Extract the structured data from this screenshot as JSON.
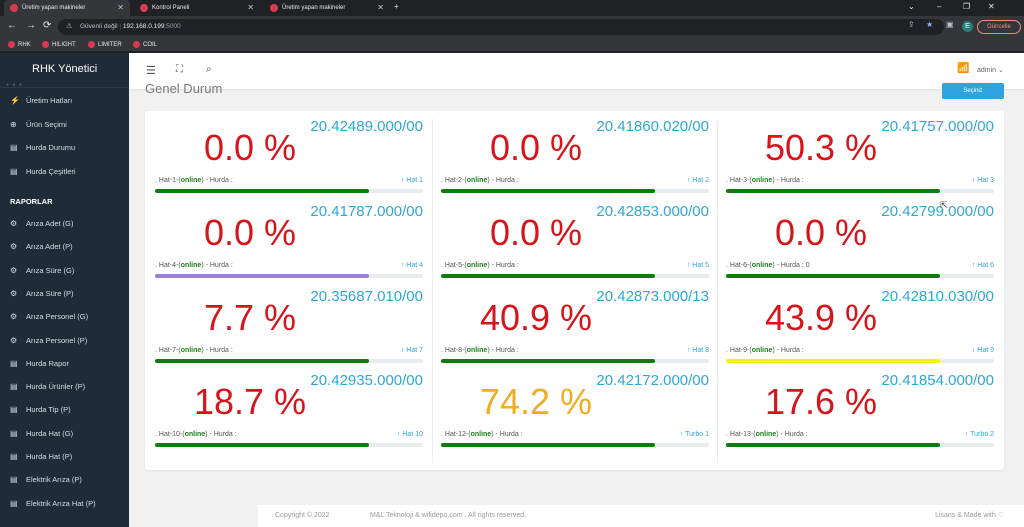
{
  "browser": {
    "tabs": [
      {
        "title": "Üretim yapan makineler",
        "active": true
      },
      {
        "title": "Kontrol Paneli",
        "active": false
      },
      {
        "title": "Üretim yapan makineler",
        "active": false
      }
    ],
    "security": "Güvenli değil",
    "host": "192.168.0.199",
    "port": ":5000",
    "avatar": "E",
    "update": "Güncelle",
    "bookmarks": [
      "RHK",
      "HILIGHT",
      "LIMITER",
      "COIL"
    ]
  },
  "sidebar": {
    "brand": "RHK Yönetici",
    "items": [
      "Üretim Hatları",
      "Ürün Seçimi",
      "Hurda Durumu",
      "Hurda Çeşitleri"
    ],
    "section": "RAPORLAR",
    "reports": [
      "Arıza Adet (G)",
      "Arıza Adet (P)",
      "Arıza Süre (G)",
      "Arıza Süre (P)",
      "Arıza Personel (G)",
      "Arıza Personel (P)",
      "Hurda Rapor",
      "Hurda Ürünler (P)",
      "Hurda Tip (P)",
      "Hurda Hat (G)",
      "Hurda Hat (P)",
      "Elektrik Arıza (P)",
      "Elektrik Arıza Hat (P)"
    ]
  },
  "topbar": {
    "user": "admin"
  },
  "page": {
    "title": "Genel Durum",
    "button": "Seçiniz"
  },
  "colors": {
    "green": "#107c10",
    "purple": "#9b7fd6",
    "yellow": "#f2f21a",
    "red": "#d7141a",
    "orange": "#f0ad23",
    "blue": "#2fa7d6"
  },
  "lines": [
    {
      "pct": "0.0 %",
      "code": "20.42489.000/00",
      "label": "Hat-1",
      "status": "online",
      "hurda": "",
      "tag": "Hat 1",
      "fill": 0.8,
      "bar": "green",
      "pct_color": "red"
    },
    {
      "pct": "0.0 %",
      "code": "20.41860.020/00",
      "label": "Hat-2",
      "status": "online",
      "hurda": "",
      "tag": "Hat 2",
      "fill": 0.8,
      "bar": "green",
      "pct_color": "red"
    },
    {
      "pct": "50.3 %",
      "code": "20.41757.000/00",
      "label": "Hat-3",
      "status": "online",
      "hurda": "",
      "tag": "Hat 3",
      "fill": 0.8,
      "bar": "green",
      "pct_color": "red"
    },
    {
      "pct": "0.0 %",
      "code": "20.41787.000/00",
      "label": "Hat-4",
      "status": "online",
      "hurda": "",
      "tag": "Hat 4",
      "fill": 0.8,
      "bar": "purple",
      "pct_color": "red"
    },
    {
      "pct": "0.0 %",
      "code": "20.42853.000/00",
      "label": "Hat-5",
      "status": "online",
      "hurda": "",
      "tag": "Hat 5",
      "fill": 0.8,
      "bar": "green",
      "pct_color": "red"
    },
    {
      "pct": "0.0 %",
      "code": "20.42799.000/00",
      "label": "Hat-6",
      "status": "online",
      "hurda": "0",
      "tag": "Hat 6",
      "fill": 0.8,
      "bar": "green",
      "pct_color": "red"
    },
    {
      "pct": "7.7 %",
      "code": "20.35687.010/00",
      "label": "Hat-7",
      "status": "online",
      "hurda": "",
      "tag": "Hat 7",
      "fill": 0.8,
      "bar": "green",
      "pct_color": "red"
    },
    {
      "pct": "40.9 %",
      "code": "20.42873.000/13",
      "label": "Hat-8",
      "status": "online",
      "hurda": "",
      "tag": "Hat 8",
      "fill": 0.8,
      "bar": "green",
      "pct_color": "red"
    },
    {
      "pct": "43.9 %",
      "code": "20.42810.030/00",
      "label": "Hat-9",
      "status": "online",
      "hurda": "",
      "tag": "Hat 9",
      "fill": 0.8,
      "bar": "yellow",
      "pct_color": "red"
    },
    {
      "pct": "18.7 %",
      "code": "20.42935.000/00",
      "label": "Hat-10",
      "status": "online",
      "hurda": "",
      "tag": "Hat 10",
      "fill": 0.8,
      "bar": "green",
      "pct_color": "red"
    },
    {
      "pct": "74.2 %",
      "code": "20.42172.000/00",
      "label": "Hat-12",
      "status": "online",
      "hurda": "",
      "tag": "Turbo 1",
      "fill": 0.8,
      "bar": "green",
      "pct_color": "orange"
    },
    {
      "pct": "17.6 %",
      "code": "20.41854.000/00",
      "label": "Hat-13",
      "status": "online",
      "hurda": "",
      "tag": "Turbo 2",
      "fill": 0.8,
      "bar": "green",
      "pct_color": "red"
    }
  ],
  "footer": {
    "copy": "Copyright © 2022",
    "company": "M&L Teknoloji & wifidepo.com . All rights reserved.",
    "license": "Lisans & Made with ♡"
  }
}
